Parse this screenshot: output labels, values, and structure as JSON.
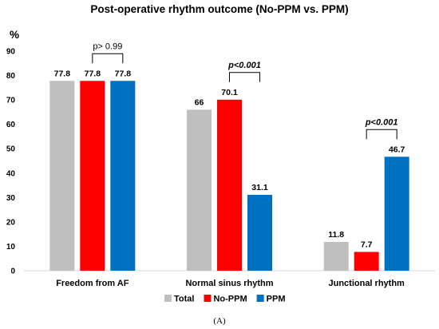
{
  "caption": "(A)",
  "chart_data": {
    "type": "bar",
    "title": "Post-operative rhythm outcome (No-PPM vs. PPM)",
    "ylabel": "%",
    "xlabel": "",
    "ylim": [
      0,
      90
    ],
    "yticks": [
      "0",
      "10",
      "20",
      "30",
      "40",
      "50",
      "60",
      "70",
      "80",
      "90"
    ],
    "grid": false,
    "legend_position": "bottom",
    "categories": [
      "Freedom from AF",
      "Normal sinus rhythm",
      "Junctional rhythm"
    ],
    "series": [
      {
        "name": "Total",
        "color": "#bfbfbf",
        "values": [
          77.8,
          66,
          11.8
        ],
        "labels": [
          "77.8",
          "66",
          "11.8"
        ]
      },
      {
        "name": "No-PPM",
        "color": "#ff0000",
        "values": [
          77.8,
          70.1,
          7.7
        ],
        "labels": [
          "77.8",
          "70.1",
          "7.7"
        ]
      },
      {
        "name": "PPM",
        "color": "#0070c0",
        "values": [
          77.8,
          31.1,
          46.7
        ],
        "labels": [
          "77.8",
          "31.1",
          "46.7"
        ]
      }
    ],
    "annotations": [
      {
        "category": 0,
        "text": "p> 0.99",
        "style": "normal"
      },
      {
        "category": 1,
        "text": "p<0.001",
        "style": "bold-italic"
      },
      {
        "category": 2,
        "text": "p<0.001",
        "style": "bold-italic"
      }
    ]
  }
}
